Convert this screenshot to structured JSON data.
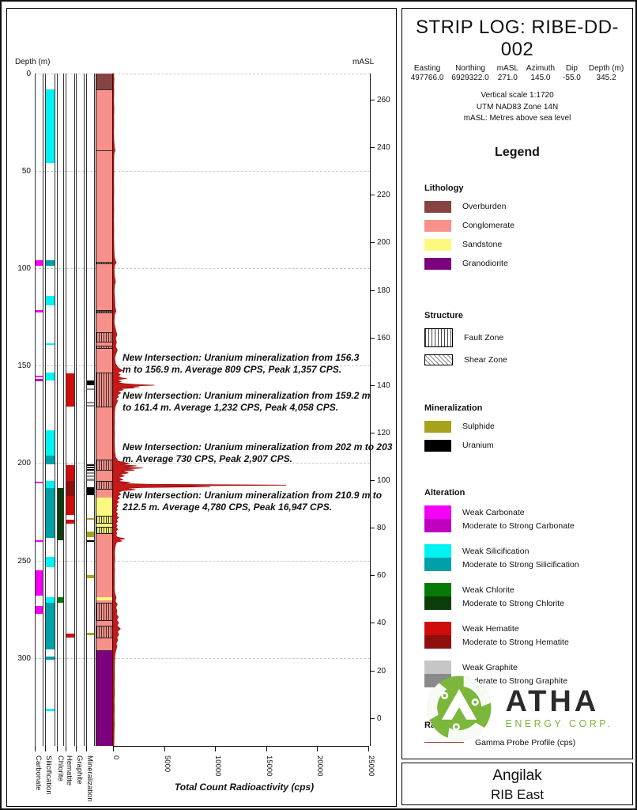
{
  "header": {
    "title": "STRIP LOG: RIBE-DD-002",
    "fields": [
      {
        "label": "Easting",
        "value": "497766.0"
      },
      {
        "label": "Northing",
        "value": "6929322.0"
      },
      {
        "label": "mASL",
        "value": "271.0"
      },
      {
        "label": "Azimuth",
        "value": "145.0"
      },
      {
        "label": "Dip",
        "value": "-55.0"
      },
      {
        "label": "Depth (m)",
        "value": "345.2"
      }
    ],
    "scale_lines": [
      "Vertical scale 1:1720",
      "UTM NAD83 Zone 14N",
      "mASL: Metres above sea level"
    ]
  },
  "legend": {
    "title": "Legend",
    "sections": [
      {
        "title": "Lithology",
        "type": "swatch",
        "items": [
          {
            "label": "Overburden",
            "color": "overburden"
          },
          {
            "label": "Conglomerate",
            "color": "conglomerate"
          },
          {
            "label": "Sandstone",
            "color": "sandstone"
          },
          {
            "label": "Granodiorite",
            "color": "granodiorite"
          }
        ]
      },
      {
        "title": "Structure",
        "type": "pattern",
        "items": [
          {
            "label": "Fault Zone",
            "pattern": "fault"
          },
          {
            "label": "Shear Zone",
            "pattern": "shear"
          }
        ]
      },
      {
        "title": "Mineralization",
        "type": "swatch",
        "items": [
          {
            "label": "Sulphide",
            "color": "sulphide"
          },
          {
            "label": "Uranium",
            "color": "uranium"
          }
        ]
      },
      {
        "title": "Alteration",
        "type": "pair",
        "items": [
          {
            "labels": [
              "Weak Carbonate",
              "Moderate to Strong Carbonate"
            ],
            "colors": [
              "carbonate_weak",
              "carbonate_mod"
            ]
          },
          {
            "labels": [
              "Weak Silicification",
              "Moderate to Strong Silicification"
            ],
            "colors": [
              "silicification_weak",
              "silicification_mod"
            ]
          },
          {
            "labels": [
              "Weak Chlorite",
              "Moderate to Strong Chlorite"
            ],
            "colors": [
              "chlorite_weak",
              "chlorite_mod"
            ]
          },
          {
            "labels": [
              "Weak Hematite",
              "Moderate to Strong Hematite"
            ],
            "colors": [
              "hematite_weak",
              "hematite_mod"
            ]
          },
          {
            "labels": [
              "Weak Graphite",
              "Moderate to Strong Graphite"
            ],
            "colors": [
              "graphite_weak",
              "graphite_mod"
            ]
          }
        ]
      },
      {
        "title": "Radioactivity",
        "type": "line",
        "items": [
          {
            "label": "Gamma Probe Profile (cps)",
            "color": "gamma_legend"
          }
        ]
      }
    ]
  },
  "logo": {
    "name": "ATHA",
    "sub": "ENERGY CORP.",
    "green": "#7cb63b"
  },
  "footer": {
    "line1": "Angilak",
    "line2": "RIB East"
  },
  "colors": {
    "overburden": "#854442",
    "conglomerate": "#f8918a",
    "sandstone": "#fbf97f",
    "granodiorite": "#7d007d",
    "sulphide": "#a7a11c",
    "uranium": "#000000",
    "carbonate_weak": "#f400f4",
    "carbonate_mod": "#c000c0",
    "silicification_weak": "#00f2f2",
    "silicification_mod": "#00a0a8",
    "chlorite_weak": "#067a06",
    "chlorite_mod": "#0a3d0a",
    "hematite_weak": "#cf0d0d",
    "hematite_mod": "#8f0f0f",
    "graphite_weak": "#c6c6c6",
    "graphite_mod": "#8a8a8a",
    "gamma": "#c41a1a",
    "gamma_legend": "#a34a32"
  },
  "chart_data": {
    "type": "strip-log",
    "title": "STRIP LOG: RIBE-DD-002",
    "depth_axis": {
      "label": "Depth (m)",
      "ticks": [
        0,
        50,
        100,
        150,
        200,
        250,
        300
      ],
      "max_depth": 345.2
    },
    "masl_axis": {
      "label": "mASL",
      "ticks": [
        260,
        240,
        220,
        200,
        180,
        160,
        140,
        120,
        100,
        80,
        60,
        40,
        20,
        0
      ],
      "collar_masl": 271.0,
      "dip_deg": -55.0
    },
    "rad_axis": {
      "label": "Total Count Radioactivity (cps)",
      "ticks": [
        0,
        5000,
        10000,
        15000,
        20000,
        25000
      ],
      "max": 25000
    },
    "columns": [
      {
        "key": "carbonate",
        "label": "Carbonate",
        "intervals": [
          [
            96,
            98.5,
            "weak"
          ],
          [
            121.5,
            122.5,
            "weak"
          ],
          [
            155,
            155.8,
            "weak"
          ],
          [
            156.6,
            157.8,
            "moderate"
          ],
          [
            209.5,
            210.5,
            "weak"
          ],
          [
            239.5,
            240.5,
            "weak"
          ],
          [
            255,
            268,
            "weak"
          ],
          [
            273.5,
            277.5,
            "weak"
          ]
        ]
      },
      {
        "key": "silicification",
        "label": "Silicification",
        "intervals": [
          [
            8,
            46,
            "weak"
          ],
          [
            96,
            98.5,
            "moderate"
          ],
          [
            114,
            119,
            "weak"
          ],
          [
            138.5,
            139.5,
            "weak"
          ],
          [
            153.5,
            157.5,
            "weak"
          ],
          [
            183,
            196,
            "weak"
          ],
          [
            196,
            200.5,
            "moderate"
          ],
          [
            209,
            213,
            "weak"
          ],
          [
            213,
            238.5,
            "moderate"
          ],
          [
            248,
            253.5,
            "weak"
          ],
          [
            269,
            271.5,
            "weak"
          ],
          [
            271.5,
            295.5,
            "moderate"
          ],
          [
            299.5,
            301,
            "moderate"
          ],
          [
            326,
            327.2,
            "weak"
          ]
        ]
      },
      {
        "key": "chlorite",
        "label": "Chlorite",
        "intervals": [
          [
            213,
            239.5,
            "moderate"
          ],
          [
            269,
            271.5,
            "weak"
          ]
        ]
      },
      {
        "key": "hematite",
        "label": "Hematite",
        "intervals": [
          [
            154,
            171,
            "weak"
          ],
          [
            201,
            209.3,
            "weak"
          ],
          [
            209.3,
            216.7,
            "moderate"
          ],
          [
            216.7,
            226.8,
            "weak"
          ],
          [
            229,
            231,
            "weak"
          ],
          [
            287.5,
            289.5,
            "weak"
          ]
        ]
      },
      {
        "key": "graphite",
        "label": "Graphite",
        "intervals": []
      },
      {
        "key": "mineralization",
        "label": "Mineralization",
        "intervals": [
          [
            157.5,
            160,
            "uranium"
          ],
          [
            161.5,
            162.5,
            "graphite"
          ],
          [
            168.5,
            169.5,
            "graphite"
          ],
          [
            170,
            170.8,
            "graphite"
          ],
          [
            200.5,
            201.3,
            "uranium"
          ],
          [
            202,
            202.8,
            "uranium"
          ],
          [
            203.2,
            204,
            "uranium"
          ],
          [
            204.5,
            205.3,
            "graphite"
          ],
          [
            206.5,
            207.3,
            "graphite"
          ],
          [
            208,
            209,
            "graphite"
          ],
          [
            212.5,
            216.5,
            "uranium"
          ],
          [
            228.3,
            229,
            "sulphide"
          ],
          [
            235,
            238,
            "sulphide"
          ],
          [
            239.8,
            240.6,
            "uranium"
          ],
          [
            257.5,
            259,
            "sulphide"
          ],
          [
            287.3,
            288.3,
            "sulphide"
          ]
        ]
      }
    ],
    "lithology_intervals": [
      [
        0,
        8,
        "overburden"
      ],
      [
        8,
        296,
        "conglomerate"
      ],
      [
        217.5,
        236.5,
        "sandstone"
      ],
      [
        269,
        270.5,
        "sandstone"
      ],
      [
        296,
        345.2,
        "granodiorite"
      ]
    ],
    "fault_zones": [
      [
        96.5,
        98
      ],
      [
        121.5,
        123
      ],
      [
        133,
        138
      ],
      [
        139.5,
        141.5
      ],
      [
        153.5,
        171.5
      ],
      [
        198,
        204
      ],
      [
        209,
        213.5
      ],
      [
        227,
        231
      ],
      [
        232.5,
        236.5
      ],
      [
        271.5,
        281
      ],
      [
        283.5,
        290
      ]
    ],
    "contacts": [
      8,
      39.5,
      96.5,
      122,
      296
    ],
    "annotations": [
      {
        "depth": 143,
        "text": "New Intersection: Uranium mineralization from 156.3 m to 156.9 m. Average 809 CPS, Peak 1,357 CPS."
      },
      {
        "depth": 162.5,
        "text": "New Intersection: Uranium mineralization from 159.2 m to 161.4 m. Average 1,232 CPS, Peak 4,058 CPS."
      },
      {
        "depth": 189,
        "text": "New Intersection: Uranium mineralization from 202 m to 203 m. Average 730 CPS, Peak 2,907 CPS."
      },
      {
        "depth": 213.5,
        "text": "New Intersection: Uranium mineralization from 210.9 m to 212.5 m. Average 4,780 CPS, Peak 16,947 CPS."
      }
    ],
    "gamma_profile": [
      [
        0,
        60
      ],
      [
        3,
        90
      ],
      [
        6,
        70
      ],
      [
        10,
        80
      ],
      [
        14,
        60
      ],
      [
        18,
        90
      ],
      [
        22,
        70
      ],
      [
        26,
        80
      ],
      [
        30,
        60
      ],
      [
        34,
        80
      ],
      [
        38,
        130
      ],
      [
        39.5,
        200
      ],
      [
        41,
        90
      ],
      [
        45,
        70
      ],
      [
        50,
        80
      ],
      [
        55,
        60
      ],
      [
        60,
        75
      ],
      [
        65,
        60
      ],
      [
        70,
        80
      ],
      [
        75,
        65
      ],
      [
        80,
        80
      ],
      [
        85,
        70
      ],
      [
        90,
        90
      ],
      [
        94,
        120
      ],
      [
        96,
        220
      ],
      [
        97,
        320
      ],
      [
        98,
        180
      ],
      [
        100,
        100
      ],
      [
        104,
        130
      ],
      [
        107,
        240
      ],
      [
        109,
        130
      ],
      [
        112,
        110
      ],
      [
        116,
        160
      ],
      [
        120,
        200
      ],
      [
        122,
        290
      ],
      [
        124,
        130
      ],
      [
        128,
        110
      ],
      [
        132,
        260
      ],
      [
        134,
        380
      ],
      [
        136,
        240
      ],
      [
        138,
        330
      ],
      [
        140,
        230
      ],
      [
        142,
        420
      ],
      [
        144,
        260
      ],
      [
        146,
        160
      ],
      [
        149,
        240
      ],
      [
        151,
        500
      ],
      [
        152.5,
        950
      ],
      [
        153.5,
        420
      ],
      [
        154.5,
        700
      ],
      [
        155.5,
        500
      ],
      [
        156.3,
        900
      ],
      [
        156.6,
        1357
      ],
      [
        156.9,
        800
      ],
      [
        157.4,
        350
      ],
      [
        158,
        800
      ],
      [
        158.6,
        450
      ],
      [
        159.2,
        1100
      ],
      [
        159.6,
        2200
      ],
      [
        160,
        4058
      ],
      [
        160.4,
        1700
      ],
      [
        160.8,
        2600
      ],
      [
        161.2,
        1400
      ],
      [
        161.4,
        2100
      ],
      [
        161.8,
        700
      ],
      [
        162.4,
        1000
      ],
      [
        163,
        450
      ],
      [
        164,
        750
      ],
      [
        165,
        380
      ],
      [
        166,
        550
      ],
      [
        167,
        280
      ],
      [
        168,
        450
      ],
      [
        169.5,
        320
      ],
      [
        171,
        220
      ],
      [
        173,
        160
      ],
      [
        176,
        130
      ],
      [
        179,
        150
      ],
      [
        182,
        120
      ],
      [
        185,
        150
      ],
      [
        188,
        120
      ],
      [
        191,
        140
      ],
      [
        194,
        160
      ],
      [
        197,
        240
      ],
      [
        199,
        500
      ],
      [
        200.3,
        1600
      ],
      [
        200.8,
        700
      ],
      [
        201.4,
        2300
      ],
      [
        202,
        1100
      ],
      [
        202.5,
        2907
      ],
      [
        203,
        1300
      ],
      [
        203.6,
        2100
      ],
      [
        204.2,
        800
      ],
      [
        205,
        1500
      ],
      [
        205.8,
        600
      ],
      [
        206.6,
        1100
      ],
      [
        207.4,
        500
      ],
      [
        208.4,
        950
      ],
      [
        209.2,
        450
      ],
      [
        210,
        1700
      ],
      [
        210.5,
        900
      ],
      [
        210.9,
        3500
      ],
      [
        211.3,
        16947
      ],
      [
        211.7,
        5000
      ],
      [
        212.1,
        9500
      ],
      [
        212.5,
        2800
      ],
      [
        213,
        1300
      ],
      [
        213.6,
        2200
      ],
      [
        214.2,
        900
      ],
      [
        215,
        550
      ],
      [
        216,
        750
      ],
      [
        217,
        420
      ],
      [
        218,
        650
      ],
      [
        219,
        350
      ],
      [
        220,
        550
      ],
      [
        221,
        300
      ],
      [
        222,
        480
      ],
      [
        223,
        300
      ],
      [
        224,
        420
      ],
      [
        225,
        260
      ],
      [
        226,
        450
      ],
      [
        227,
        330
      ],
      [
        228,
        560
      ],
      [
        229,
        300
      ],
      [
        230,
        460
      ],
      [
        231,
        260
      ],
      [
        232,
        400
      ],
      [
        233,
        290
      ],
      [
        234,
        460
      ],
      [
        235,
        260
      ],
      [
        236,
        360
      ],
      [
        237,
        290
      ],
      [
        238,
        420
      ],
      [
        238.8,
        1150
      ],
      [
        239.4,
        550
      ],
      [
        240,
        850
      ],
      [
        240.6,
        350
      ],
      [
        242,
        240
      ],
      [
        244,
        180
      ],
      [
        246,
        150
      ],
      [
        249,
        170
      ],
      [
        252,
        130
      ],
      [
        255,
        150
      ],
      [
        258,
        120
      ],
      [
        261,
        140
      ],
      [
        264,
        120
      ],
      [
        267,
        180
      ],
      [
        269,
        300
      ],
      [
        271,
        220
      ],
      [
        272.5,
        420
      ],
      [
        274,
        280
      ],
      [
        276,
        380
      ],
      [
        277.5,
        320
      ],
      [
        279,
        520
      ],
      [
        280.5,
        360
      ],
      [
        282,
        540
      ],
      [
        283.5,
        380
      ],
      [
        285,
        720
      ],
      [
        286.5,
        430
      ],
      [
        288,
        560
      ],
      [
        289.5,
        380
      ],
      [
        291,
        460
      ],
      [
        292.5,
        300
      ],
      [
        294,
        380
      ],
      [
        295.5,
        320
      ],
      [
        297,
        230
      ],
      [
        299,
        180
      ],
      [
        302,
        150
      ],
      [
        306,
        130
      ],
      [
        310,
        150
      ],
      [
        314,
        120
      ],
      [
        318,
        140
      ],
      [
        322,
        110
      ],
      [
        326,
        130
      ],
      [
        330,
        110
      ],
      [
        334,
        120
      ],
      [
        338,
        100
      ],
      [
        342,
        90
      ],
      [
        345.2,
        80
      ]
    ]
  }
}
